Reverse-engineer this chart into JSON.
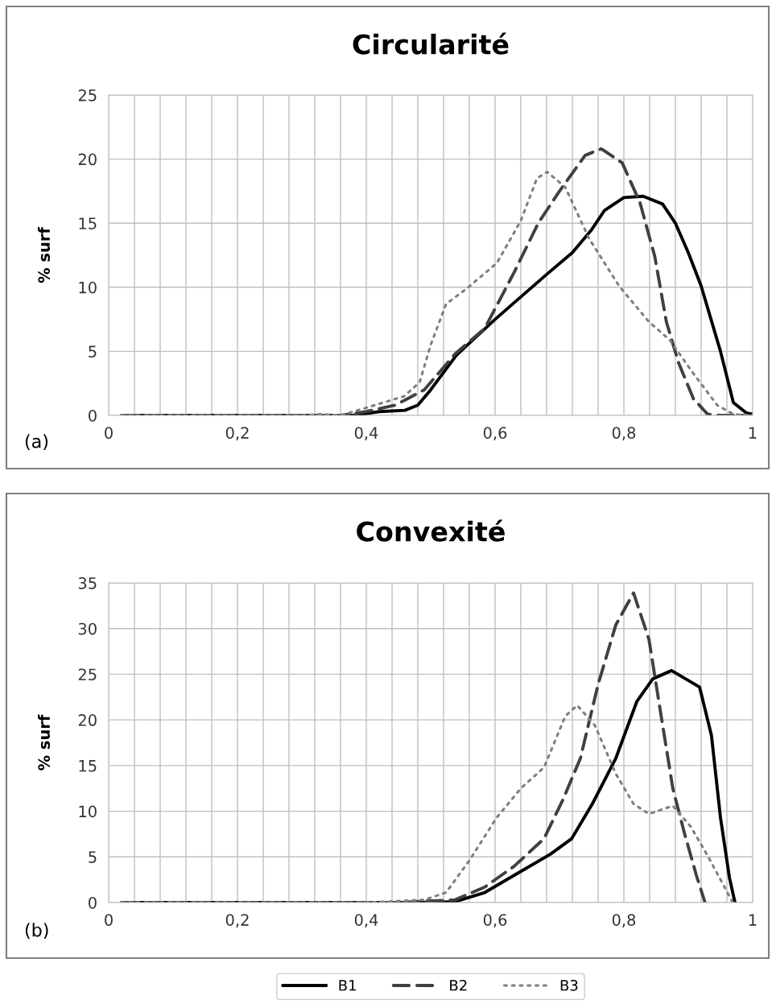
{
  "chart_data": [
    {
      "type": "line",
      "title": "Circularité",
      "ylabel": "% surf",
      "annotations": [
        "(a)"
      ],
      "xlim": [
        0,
        1
      ],
      "ylim": [
        0,
        25
      ],
      "xticks": [
        0,
        {
          "value": 0.04,
          "label": null
        },
        {
          "value": 0.08,
          "label": null
        },
        {
          "value": 0.12,
          "label": null
        },
        {
          "value": 0.16,
          "label": null
        },
        {
          "value": 0.2,
          "label": "0,2"
        },
        {
          "value": 0.24,
          "label": null
        },
        {
          "value": 0.28,
          "label": null
        },
        {
          "value": 0.32,
          "label": null
        },
        {
          "value": 0.36,
          "label": null
        },
        {
          "value": 0.4,
          "label": "0,4"
        },
        {
          "value": 0.44,
          "label": null
        },
        {
          "value": 0.48,
          "label": null
        },
        {
          "value": 0.52,
          "label": null
        },
        {
          "value": 0.56,
          "label": null
        },
        {
          "value": 0.6,
          "label": "0,6"
        },
        {
          "value": 0.64,
          "label": null
        },
        {
          "value": 0.68,
          "label": null
        },
        {
          "value": 0.72,
          "label": null
        },
        {
          "value": 0.76,
          "label": null
        },
        {
          "value": 0.8,
          "label": "0,8"
        },
        {
          "value": 0.84,
          "label": null
        },
        {
          "value": 0.88,
          "label": null
        },
        {
          "value": 0.92,
          "label": null
        },
        {
          "value": 0.96,
          "label": null
        },
        1
      ],
      "yticks": [
        0,
        5,
        10,
        15,
        20,
        25
      ],
      "grid": true,
      "series": [
        {
          "color": "#000000",
          "line_style": "solid",
          "x": [
            0.02,
            0.38,
            0.42,
            0.46,
            0.48,
            0.5,
            0.54,
            0.6,
            0.68,
            0.72,
            0.75,
            0.77,
            0.8,
            0.83,
            0.86,
            0.88,
            0.9,
            0.92,
            0.95,
            0.97,
            0.99,
            1
          ],
          "values": [
            0,
            0,
            0.3,
            0.4,
            0.8,
            2,
            4.7,
            7.5,
            11,
            12.7,
            14.5,
            16,
            17,
            17.1,
            16.5,
            15,
            12.7,
            10.1,
            5,
            1,
            0.2,
            0.1
          ]
        },
        {
          "color": "#404040",
          "line_style": "dashed",
          "x": [
            0.02,
            0.36,
            0.4,
            0.445,
            0.49,
            0.538,
            0.584,
            0.63,
            0.667,
            0.7,
            0.74,
            0.765,
            0.7975,
            0.825,
            0.848,
            0.866,
            0.885,
            0.908,
            0.93,
            0.95,
            1
          ],
          "values": [
            0,
            0,
            0.3,
            0.8,
            2,
            4.8,
            6.8,
            11.2,
            15,
            17.5,
            20.3,
            20.8,
            19.7,
            16.6,
            12.4,
            7.3,
            4.1,
            1.3,
            0.1,
            0,
            0
          ]
        },
        {
          "color": "#7f7f7f",
          "line_style": "dotted",
          "x": [
            0.02,
            0.3,
            0.33,
            0.36,
            0.4,
            0.459,
            0.483,
            0.5,
            0.524,
            0.556,
            0.603,
            0.64,
            0.665,
            0.681,
            0.709,
            0.746,
            0.7925,
            0.839,
            0.871,
            0.9075,
            0.945,
            0.97,
            1
          ],
          "values": [
            0,
            0,
            0.1,
            0,
            0.6,
            1.5,
            2.6,
            5.5,
            8.7,
            9.9,
            11.9,
            15.2,
            18.5,
            19,
            17.8,
            13.8,
            10.1,
            7.3,
            5.9,
            3.3,
            0.8,
            0.1,
            0
          ]
        }
      ]
    },
    {
      "type": "line",
      "title": "Convexité",
      "ylabel": "% surf",
      "annotations": [
        "(b)"
      ],
      "xlim": [
        0,
        1
      ],
      "ylim": [
        0,
        35
      ],
      "xticks": [
        0,
        {
          "value": 0.04,
          "label": null
        },
        {
          "value": 0.08,
          "label": null
        },
        {
          "value": 0.12,
          "label": null
        },
        {
          "value": 0.16,
          "label": null
        },
        {
          "value": 0.2,
          "label": "0,2"
        },
        {
          "value": 0.24,
          "label": null
        },
        {
          "value": 0.28,
          "label": null
        },
        {
          "value": 0.32,
          "label": null
        },
        {
          "value": 0.36,
          "label": null
        },
        {
          "value": 0.4,
          "label": "0,4"
        },
        {
          "value": 0.44,
          "label": null
        },
        {
          "value": 0.48,
          "label": null
        },
        {
          "value": 0.52,
          "label": null
        },
        {
          "value": 0.56,
          "label": null
        },
        {
          "value": 0.6,
          "label": "0,6"
        },
        {
          "value": 0.64,
          "label": null
        },
        {
          "value": 0.68,
          "label": null
        },
        {
          "value": 0.72,
          "label": null
        },
        {
          "value": 0.76,
          "label": null
        },
        {
          "value": 0.8,
          "label": "0,8"
        },
        {
          "value": 0.84,
          "label": null
        },
        {
          "value": 0.88,
          "label": null
        },
        {
          "value": 0.92,
          "label": null
        },
        {
          "value": 0.96,
          "label": null
        },
        1
      ],
      "yticks": [
        0,
        5,
        10,
        15,
        20,
        25,
        30,
        35
      ],
      "grid": true,
      "legend": "bottom",
      "series": [
        {
          "name": "B1",
          "color": "#000000",
          "line_style": "solid",
          "x": [
            0.02,
            0.5,
            0.538,
            0.584,
            0.63,
            0.686,
            0.719,
            0.751,
            0.7875,
            0.82,
            0.845,
            0.874,
            0.9175,
            0.936,
            0.95,
            0.964,
            0.9725
          ],
          "values": [
            0,
            0,
            0.1,
            1.1,
            3,
            5.3,
            7,
            10.8,
            15.8,
            22,
            24.5,
            25.4,
            23.6,
            18.3,
            9.3,
            2.7,
            0
          ]
        },
        {
          "name": "B2",
          "color": "#404040",
          "line_style": "dashed",
          "x": [
            0.02,
            0.45,
            0.538,
            0.584,
            0.63,
            0.676,
            0.705,
            0.7325,
            0.76,
            0.7875,
            0.815,
            0.839,
            0.8575,
            0.876,
            0.894,
            0.9125,
            0.926
          ],
          "values": [
            0,
            0,
            0.3,
            1.7,
            4,
            7,
            11.2,
            15.8,
            23.9,
            30.4,
            33.9,
            28.8,
            20.6,
            12.5,
            7.6,
            3,
            0
          ]
        },
        {
          "name": "B3",
          "color": "#7f7f7f",
          "line_style": "dotted",
          "x": [
            0.02,
            0.4,
            0.49,
            0.524,
            0.561,
            0.6025,
            0.64,
            0.676,
            0.709,
            0.7275,
            0.755,
            0.7875,
            0.815,
            0.839,
            0.876,
            0.904,
            0.931,
            0.954,
            0.969
          ],
          "values": [
            0,
            0,
            0.3,
            1.1,
            4.7,
            9.3,
            12.5,
            14.8,
            20.4,
            21.6,
            19.4,
            14.1,
            10.8,
            9.7,
            10.6,
            8.3,
            5,
            2,
            0
          ]
        }
      ]
    }
  ]
}
